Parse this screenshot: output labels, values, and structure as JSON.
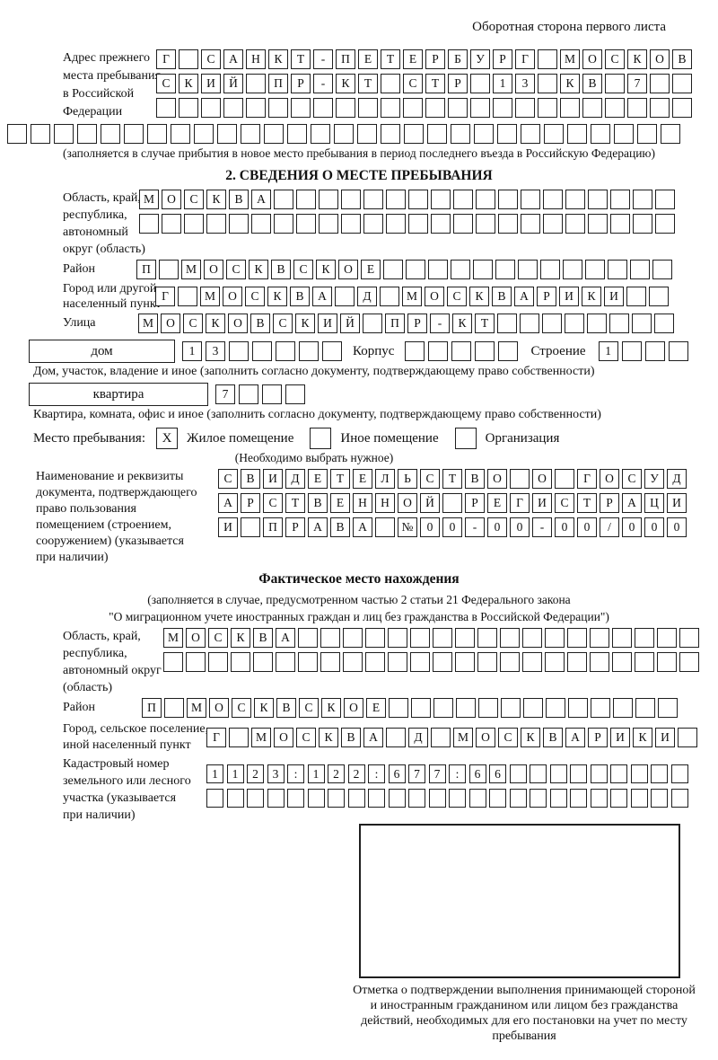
{
  "page": {
    "header_note": "Оборотная сторона первого листа"
  },
  "prev_address": {
    "label": "Адрес прежнего\nместа пребывания\nв Российской\nФедерации",
    "row1": {
      "cells": "Г САНКТ-ПЕТЕРБУРГ МОСКОВ",
      "count": 24
    },
    "row2": {
      "cells": "СКИЙ ПР-КТ СТР 13 КВ 7",
      "count": 24
    },
    "row3": {
      "cells": "",
      "count": 24
    },
    "row4": {
      "cells": "",
      "count": 29
    },
    "note": "(заполняется в случае прибытия в новое место пребывания в период последнего въезда в Российскую Федерацию)"
  },
  "section2": {
    "title": "2. СВЕДЕНИЯ О МЕСТЕ ПРЕБЫВАНИЯ",
    "region": {
      "label": "Область, край,\nреспублика,\nавтономный\nокруг (область)",
      "row1": {
        "cells": "МОСКВА",
        "count": 24
      },
      "row2": {
        "cells": "",
        "count": 24
      }
    },
    "district": {
      "label": "Район",
      "row": {
        "cells": "П МОСКВСКОЕ",
        "count": 24
      }
    },
    "city": {
      "label": "Город или другой\nнаселенный пункт",
      "row": {
        "cells": "Г МОСКВА Д МОСКВАРИКИ",
        "count": 23
      }
    },
    "street": {
      "label": "Улица",
      "row": {
        "cells": "МОСКОВСКИЙ ПР-КТ",
        "count": 24
      }
    },
    "house": {
      "box_label": "дом",
      "row": {
        "cells": "13",
        "count": 7
      },
      "korpus_label": "Корпус",
      "korpus_row": {
        "cells": "",
        "count": 5
      },
      "stroenie_label": "Строение",
      "stroenie_row": {
        "cells": "1",
        "count": 4
      },
      "note": "Дом, участок, владение и иное (заполнить согласно документу, подтверждающему право собственности)"
    },
    "apartment": {
      "box_label": "квартира",
      "row": {
        "cells": "7",
        "count": 4
      },
      "note": "Квартира, комната, офис и иное (заполнить согласно документу, подтверждающему право собственности)"
    },
    "stay_type": {
      "label": "Место пребывания:",
      "options": [
        {
          "label": "Жилое помещение",
          "checked": "X"
        },
        {
          "label": "Иное помещение",
          "checked": ""
        },
        {
          "label": "Организация",
          "checked": ""
        }
      ],
      "note": "(Необходимо выбрать нужное)"
    },
    "document": {
      "label": "Наименование и реквизиты\nдокумента, подтверждающего\nправо пользования\nпомещением (строением,\nсооружением) (указывается\nпри наличии)",
      "row1": {
        "cells": "СВИДЕТЕЛЬСТВО О ГОСУД",
        "count": 21
      },
      "row2": {
        "cells": "АРСТВЕННОЙ РЕГИСТРАЦИ",
        "count": 21
      },
      "row3": {
        "cells": "И ПРАВА №00-00-00/000",
        "count": 21
      }
    }
  },
  "actual_location": {
    "title": "Фактическое место нахождения",
    "note1": "(заполняется в случае, предусмотренном частью 2 статьи 21 Федерального закона",
    "note2": "\"О миграционном учете иностранных граждан и лиц без гражданства в Российской Федерации\")",
    "region": {
      "label": "Область, край,\nреспублика,\nавтономный округ\n(область)",
      "row1": {
        "cells": "МОСКВА",
        "count": 24
      },
      "row2": {
        "cells": "",
        "count": 24
      }
    },
    "district": {
      "label": "Район",
      "row": {
        "cells": "П МОСКВСКОЕ",
        "count": 24
      }
    },
    "city": {
      "label": "Город, сельское поселение,\nиной населенный пункт",
      "row": {
        "cells": "Г МОСКВА Д МОСКВАРИКИ",
        "count": 22
      }
    },
    "cadastre": {
      "label": "Кадастровый номер\nземельного или лесного\nучастка (указывается\nпри наличии)",
      "row1": {
        "cells": "1123:122:677:66",
        "count": 24
      },
      "row2": {
        "cells": "",
        "count": 24
      }
    },
    "mark_caption": "Отметка о подтверждении выполнения принимающей стороной и иностранным гражданином или лицом без гражданства действий, необходимых для его постановки на учет по месту пребывания"
  }
}
